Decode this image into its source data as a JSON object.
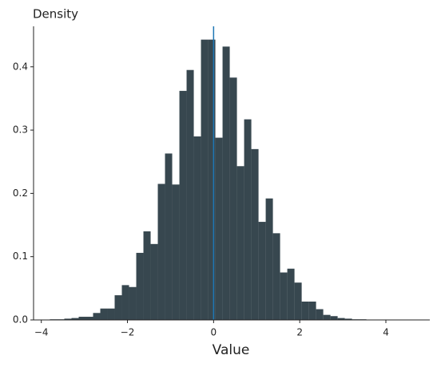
{
  "chart_data": {
    "type": "histogram",
    "ylabel": "Density",
    "xlabel": "Value",
    "bins": [
      -3.8,
      -3.633,
      -3.466,
      -3.299,
      -3.132,
      -2.965,
      -2.798,
      -2.631,
      -2.464,
      -2.297,
      -2.13,
      -1.963,
      -1.796,
      -1.629,
      -1.462,
      -1.295,
      -1.128,
      -0.961,
      -0.794,
      -0.627,
      -0.46,
      -0.293,
      -0.126,
      0.041,
      0.208,
      0.375,
      0.542,
      0.709,
      0.876,
      1.043,
      1.21,
      1.377,
      1.544,
      1.711,
      1.878,
      2.045,
      2.212,
      2.379,
      2.546,
      2.713,
      2.88,
      3.047,
      3.214,
      3.381,
      3.548
    ],
    "values": [
      0.001,
      0.001,
      0.002,
      0.003,
      0.005,
      0.005,
      0.011,
      0.018,
      0.018,
      0.039,
      0.055,
      0.052,
      0.106,
      0.14,
      0.12,
      0.215,
      0.263,
      0.214,
      0.362,
      0.395,
      0.29,
      0.443,
      0.443,
      0.288,
      0.432,
      0.383,
      0.243,
      0.317,
      0.27,
      0.155,
      0.192,
      0.137,
      0.075,
      0.081,
      0.059,
      0.029,
      0.029,
      0.017,
      0.008,
      0.006,
      0.003,
      0.002,
      0.001,
      0.001
    ],
    "color": "#37474f",
    "vline": 0,
    "vline_color": "#1f77b4",
    "xlim": [
      -4.18,
      5.02
    ],
    "ylim": [
      0,
      0.464
    ],
    "xticks": [
      {
        "value": -4,
        "label": "−4"
      },
      {
        "value": -2,
        "label": "−2"
      },
      0,
      2,
      4
    ],
    "yticks": [
      {
        "value": 0,
        "label": "0.0"
      },
      {
        "value": 0.1,
        "label": "0.1"
      },
      {
        "value": 0.2,
        "label": "0.2"
      },
      {
        "value": 0.3,
        "label": "0.3"
      },
      {
        "value": 0.4,
        "label": "0.4"
      }
    ]
  }
}
